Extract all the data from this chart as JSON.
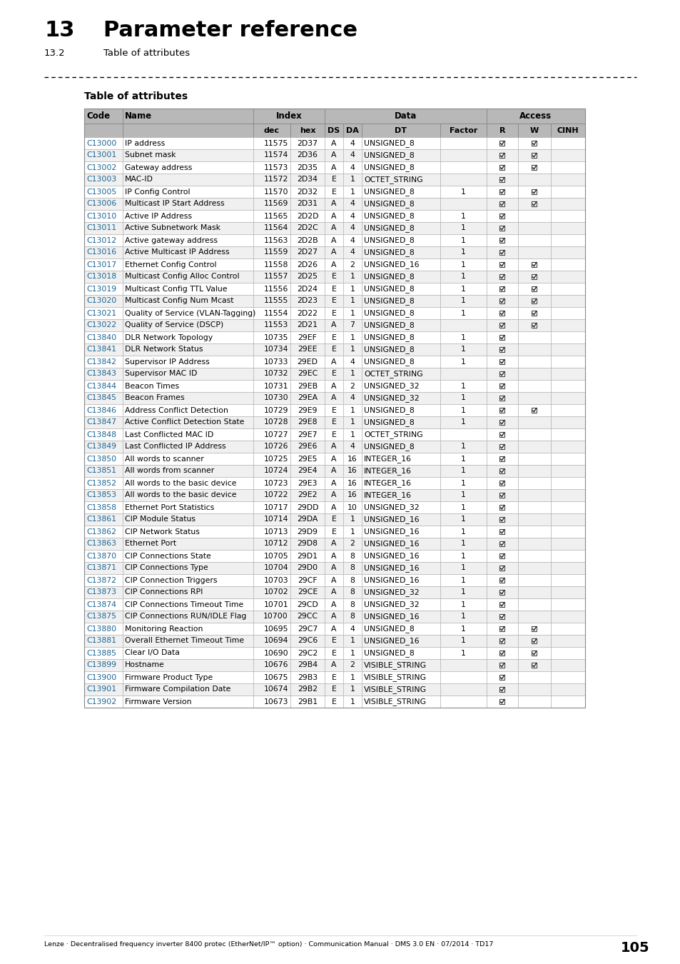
{
  "title_number": "13",
  "title_text": "Parameter reference",
  "subtitle_number": "13.2",
  "subtitle_text": "Table of attributes",
  "section_title": "Table of attributes",
  "footer_text": "Lenze · Decentralised frequency inverter 8400 protec (EtherNet/IP™ option) · Communication Manual · DMS 3.0 EN · 07/2014 · TD17",
  "page_number": "105",
  "rows": [
    [
      "C13000",
      "IP address",
      "11575",
      "2D37",
      "A",
      "4",
      "UNSIGNED_8",
      "",
      "R",
      "W",
      ""
    ],
    [
      "C13001",
      "Subnet mask",
      "11574",
      "2D36",
      "A",
      "4",
      "UNSIGNED_8",
      "",
      "R",
      "W",
      ""
    ],
    [
      "C13002",
      "Gateway address",
      "11573",
      "2D35",
      "A",
      "4",
      "UNSIGNED_8",
      "",
      "R",
      "W",
      ""
    ],
    [
      "C13003",
      "MAC-ID",
      "11572",
      "2D34",
      "E",
      "1",
      "OCTET_STRING",
      "",
      "R",
      "",
      ""
    ],
    [
      "C13005",
      "IP Config Control",
      "11570",
      "2D32",
      "E",
      "1",
      "UNSIGNED_8",
      "1",
      "R",
      "W",
      ""
    ],
    [
      "C13006",
      "Multicast IP Start Address",
      "11569",
      "2D31",
      "A",
      "4",
      "UNSIGNED_8",
      "",
      "R",
      "W",
      ""
    ],
    [
      "C13010",
      "Active IP Address",
      "11565",
      "2D2D",
      "A",
      "4",
      "UNSIGNED_8",
      "1",
      "R",
      "",
      ""
    ],
    [
      "C13011",
      "Active Subnetwork Mask",
      "11564",
      "2D2C",
      "A",
      "4",
      "UNSIGNED_8",
      "1",
      "R",
      "",
      ""
    ],
    [
      "C13012",
      "Active gateway address",
      "11563",
      "2D2B",
      "A",
      "4",
      "UNSIGNED_8",
      "1",
      "R",
      "",
      ""
    ],
    [
      "C13016",
      "Active Multicast IP Address",
      "11559",
      "2D27",
      "A",
      "4",
      "UNSIGNED_8",
      "1",
      "R",
      "",
      ""
    ],
    [
      "C13017",
      "Ethernet Config Control",
      "11558",
      "2D26",
      "A",
      "2",
      "UNSIGNED_16",
      "1",
      "R",
      "W",
      ""
    ],
    [
      "C13018",
      "Multicast Config Alloc Control",
      "11557",
      "2D25",
      "E",
      "1",
      "UNSIGNED_8",
      "1",
      "R",
      "W",
      ""
    ],
    [
      "C13019",
      "Multicast Config TTL Value",
      "11556",
      "2D24",
      "E",
      "1",
      "UNSIGNED_8",
      "1",
      "R",
      "W",
      ""
    ],
    [
      "C13020",
      "Multicast Config Num Mcast",
      "11555",
      "2D23",
      "E",
      "1",
      "UNSIGNED_8",
      "1",
      "R",
      "W",
      ""
    ],
    [
      "C13021",
      "Quality of Service (VLAN-Tagging)",
      "11554",
      "2D22",
      "E",
      "1",
      "UNSIGNED_8",
      "1",
      "R",
      "W",
      ""
    ],
    [
      "C13022",
      "Quality of Service (DSCP)",
      "11553",
      "2D21",
      "A",
      "7",
      "UNSIGNED_8",
      "",
      "R",
      "W",
      ""
    ],
    [
      "C13840",
      "DLR Network Topology",
      "10735",
      "29EF",
      "E",
      "1",
      "UNSIGNED_8",
      "1",
      "R",
      "",
      ""
    ],
    [
      "C13841",
      "DLR Network Status",
      "10734",
      "29EE",
      "E",
      "1",
      "UNSIGNED_8",
      "1",
      "R",
      "",
      ""
    ],
    [
      "C13842",
      "Supervisor IP Address",
      "10733",
      "29ED",
      "A",
      "4",
      "UNSIGNED_8",
      "1",
      "R",
      "",
      ""
    ],
    [
      "C13843",
      "Supervisor MAC ID",
      "10732",
      "29EC",
      "E",
      "1",
      "OCTET_STRING",
      "",
      "R",
      "",
      ""
    ],
    [
      "C13844",
      "Beacon Times",
      "10731",
      "29EB",
      "A",
      "2",
      "UNSIGNED_32",
      "1",
      "R",
      "",
      ""
    ],
    [
      "C13845",
      "Beacon Frames",
      "10730",
      "29EA",
      "A",
      "4",
      "UNSIGNED_32",
      "1",
      "R",
      "",
      ""
    ],
    [
      "C13846",
      "Address Conflict Detection",
      "10729",
      "29E9",
      "E",
      "1",
      "UNSIGNED_8",
      "1",
      "R",
      "W",
      ""
    ],
    [
      "C13847",
      "Active Conflict Detection State",
      "10728",
      "29E8",
      "E",
      "1",
      "UNSIGNED_8",
      "1",
      "R",
      "",
      ""
    ],
    [
      "C13848",
      "Last Conflicted MAC ID",
      "10727",
      "29E7",
      "E",
      "1",
      "OCTET_STRING",
      "",
      "R",
      "",
      ""
    ],
    [
      "C13849",
      "Last Conflicted IP Address",
      "10726",
      "29E6",
      "A",
      "4",
      "UNSIGNED_8",
      "1",
      "R",
      "",
      ""
    ],
    [
      "C13850",
      "All words to scanner",
      "10725",
      "29E5",
      "A",
      "16",
      "INTEGER_16",
      "1",
      "R",
      "",
      ""
    ],
    [
      "C13851",
      "All words from scanner",
      "10724",
      "29E4",
      "A",
      "16",
      "INTEGER_16",
      "1",
      "R",
      "",
      ""
    ],
    [
      "C13852",
      "All words to the basic device",
      "10723",
      "29E3",
      "A",
      "16",
      "INTEGER_16",
      "1",
      "R",
      "",
      ""
    ],
    [
      "C13853",
      "All words to the basic device",
      "10722",
      "29E2",
      "A",
      "16",
      "INTEGER_16",
      "1",
      "R",
      "",
      ""
    ],
    [
      "C13858",
      "Ethernet Port Statistics",
      "10717",
      "29DD",
      "A",
      "10",
      "UNSIGNED_32",
      "1",
      "R",
      "",
      ""
    ],
    [
      "C13861",
      "CIP Module Status",
      "10714",
      "29DA",
      "E",
      "1",
      "UNSIGNED_16",
      "1",
      "R",
      "",
      ""
    ],
    [
      "C13862",
      "CIP Network Status",
      "10713",
      "29D9",
      "E",
      "1",
      "UNSIGNED_16",
      "1",
      "R",
      "",
      ""
    ],
    [
      "C13863",
      "Ethernet Port",
      "10712",
      "29D8",
      "A",
      "2",
      "UNSIGNED_16",
      "1",
      "R",
      "",
      ""
    ],
    [
      "C13870",
      "CIP Connections State",
      "10705",
      "29D1",
      "A",
      "8",
      "UNSIGNED_16",
      "1",
      "R",
      "",
      ""
    ],
    [
      "C13871",
      "CIP Connections Type",
      "10704",
      "29D0",
      "A",
      "8",
      "UNSIGNED_16",
      "1",
      "R",
      "",
      ""
    ],
    [
      "C13872",
      "CIP Connection Triggers",
      "10703",
      "29CF",
      "A",
      "8",
      "UNSIGNED_16",
      "1",
      "R",
      "",
      ""
    ],
    [
      "C13873",
      "CIP Connections RPI",
      "10702",
      "29CE",
      "A",
      "8",
      "UNSIGNED_32",
      "1",
      "R",
      "",
      ""
    ],
    [
      "C13874",
      "CIP Connections Timeout Time",
      "10701",
      "29CD",
      "A",
      "8",
      "UNSIGNED_32",
      "1",
      "R",
      "",
      ""
    ],
    [
      "C13875",
      "CIP Connections RUN/IDLE Flag",
      "10700",
      "29CC",
      "A",
      "8",
      "UNSIGNED_16",
      "1",
      "R",
      "",
      ""
    ],
    [
      "C13880",
      "Monitoring Reaction",
      "10695",
      "29C7",
      "A",
      "4",
      "UNSIGNED_8",
      "1",
      "R",
      "W",
      ""
    ],
    [
      "C13881",
      "Overall Ethernet Timeout Time",
      "10694",
      "29C6",
      "E",
      "1",
      "UNSIGNED_16",
      "1",
      "R",
      "W",
      ""
    ],
    [
      "C13885",
      "Clear I/O Data",
      "10690",
      "29C2",
      "E",
      "1",
      "UNSIGNED_8",
      "1",
      "R",
      "W",
      ""
    ],
    [
      "C13899",
      "Hostname",
      "10676",
      "29B4",
      "A",
      "2",
      "VISIBLE_STRING",
      "",
      "R",
      "W",
      ""
    ],
    [
      "C13900",
      "Firmware Product Type",
      "10675",
      "29B3",
      "E",
      "1",
      "VISIBLE_STRING",
      "",
      "R",
      "",
      ""
    ],
    [
      "C13901",
      "Firmware Compilation Date",
      "10674",
      "29B2",
      "E",
      "1",
      "VISIBLE_STRING",
      "",
      "R",
      "",
      ""
    ],
    [
      "C13902",
      "Firmware Version",
      "10673",
      "29B1",
      "E",
      "1",
      "VISIBLE_STRING",
      "",
      "R",
      "",
      ""
    ]
  ],
  "link_color": "#1a6696",
  "header_bg": "#b8b8b8",
  "row_bg_even": "#ffffff",
  "row_bg_odd": "#f0f0f0",
  "border_color": "#aaaaaa",
  "text_color": "#000000"
}
